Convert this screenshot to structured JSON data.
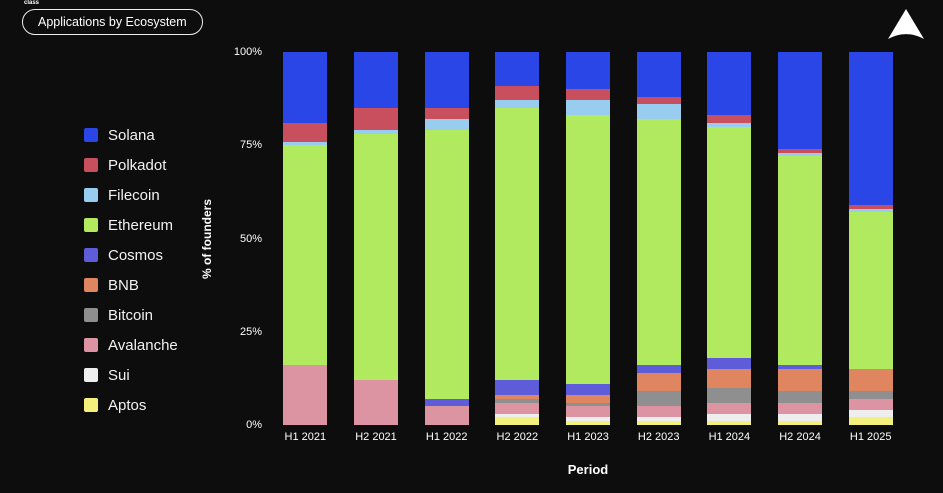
{
  "page": {
    "tiny_text": "class",
    "title_pill": "Applications by Ecosystem"
  },
  "chart_data": {
    "type": "bar",
    "stacked": true,
    "normalized": true,
    "title": "Applications by Ecosystem",
    "xlabel": "Period",
    "ylabel": "% of founders",
    "ylim": [
      0,
      100
    ],
    "yticks": [
      "0%",
      "25%",
      "50%",
      "75%",
      "100%"
    ],
    "grid": false,
    "legend_position": "left",
    "categories": [
      "H1 2021",
      "H2 2021",
      "H1 2022",
      "H2 2022",
      "H1 2023",
      "H2 2023",
      "H1 2024",
      "H2 2024",
      "H1 2025"
    ],
    "series": [
      {
        "name": "Aptos",
        "color": "#f4f07c",
        "values": [
          0,
          0,
          0,
          2,
          1,
          1,
          1,
          1,
          2
        ]
      },
      {
        "name": "Sui",
        "color": "#eeeeee",
        "values": [
          0,
          0,
          0,
          1,
          1,
          1,
          2,
          2,
          2
        ]
      },
      {
        "name": "Avalanche",
        "color": "#dc93a2",
        "values": [
          16,
          12,
          5,
          3,
          3,
          3,
          3,
          3,
          3
        ]
      },
      {
        "name": "Bitcoin",
        "color": "#8f8f8f",
        "values": [
          0,
          0,
          0,
          1,
          1,
          4,
          4,
          3,
          2
        ]
      },
      {
        "name": "BNB",
        "color": "#df855f",
        "values": [
          0,
          0,
          0,
          1,
          2,
          5,
          5,
          6,
          6
        ]
      },
      {
        "name": "Cosmos",
        "color": "#5e5cd8",
        "values": [
          0,
          0,
          2,
          4,
          3,
          2,
          3,
          1,
          0
        ]
      },
      {
        "name": "Ethereum",
        "color": "#b1e95f",
        "values": [
          59,
          66,
          72,
          73,
          72,
          66,
          62,
          56,
          42
        ]
      },
      {
        "name": "Filecoin",
        "color": "#99cdf0",
        "values": [
          1,
          1,
          3,
          2,
          4,
          4,
          1,
          1,
          1
        ]
      },
      {
        "name": "Polkadot",
        "color": "#c8505e",
        "values": [
          5,
          6,
          3,
          4,
          3,
          2,
          2,
          1,
          1
        ]
      },
      {
        "name": "Solana",
        "color": "#2b46e6",
        "values": [
          19,
          15,
          15,
          9,
          10,
          12,
          17,
          26,
          41
        ]
      }
    ]
  }
}
